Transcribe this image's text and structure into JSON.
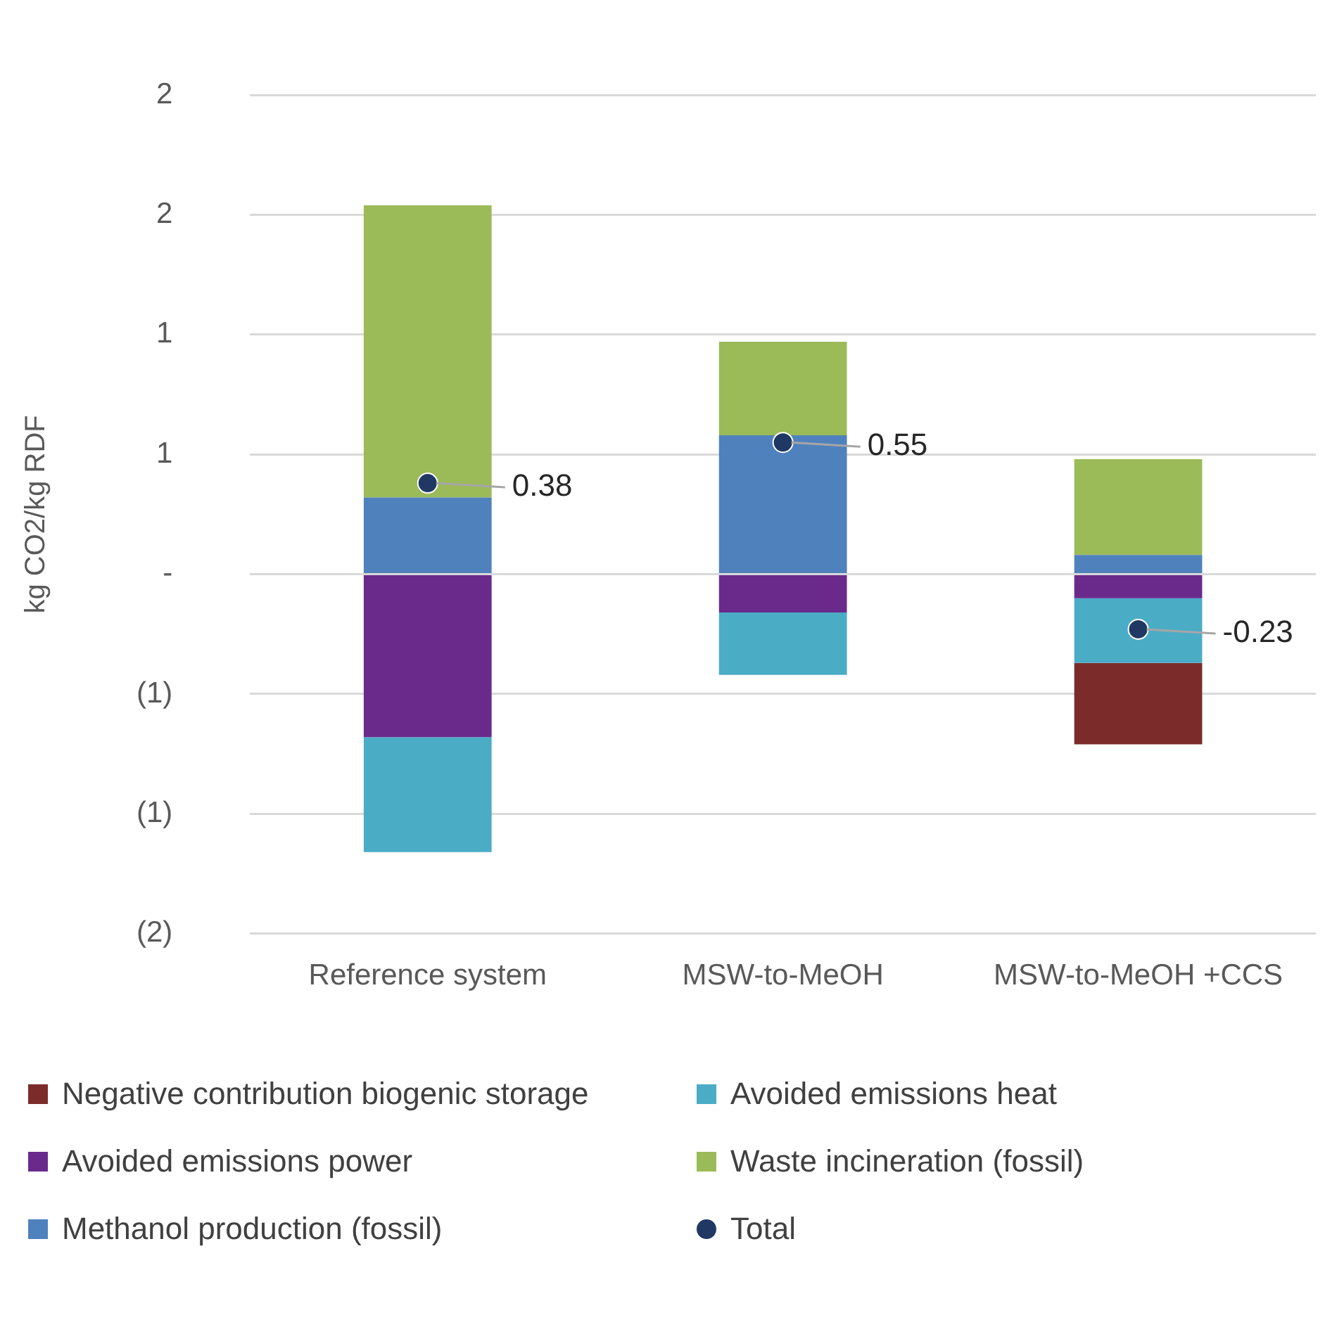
{
  "chart_data": {
    "type": "bar",
    "stacked": true,
    "ylabel": "kg CO2/kg RDF",
    "categories": [
      "Reference system",
      "MSW-to-MeOH",
      "MSW-to-MeOH +CCS"
    ],
    "series": [
      {
        "name": "Methanol production (fossil)",
        "color": "#4f81bd",
        "values": [
          0.32,
          0.58,
          0.08
        ]
      },
      {
        "name": "Waste incineration (fossil)",
        "color": "#9bbb59",
        "values": [
          1.22,
          0.39,
          0.4
        ]
      },
      {
        "name": "Avoided emissions power",
        "color": "#6a2a8c",
        "values": [
          -0.68,
          -0.16,
          -0.1
        ]
      },
      {
        "name": "Avoided emissions heat",
        "color": "#4bacc6",
        "values": [
          -0.48,
          -0.26,
          -0.27
        ]
      },
      {
        "name": "Negative contribution biogenic storage",
        "color": "#7b2c2a",
        "values": [
          0,
          0,
          -0.34
        ]
      },
      {
        "name": "Total",
        "type": "scatter",
        "color": "#1f3864",
        "x": [
          "Reference system",
          "MSW-to-MeOH",
          "MSW-to-MeOH +CCS"
        ],
        "values": [
          0.38,
          0.55,
          -0.23
        ],
        "value_labels": [
          "0.38",
          "0.55",
          "-0.23"
        ]
      }
    ],
    "ylim": [
      -1.5,
      2
    ],
    "yticks": [
      {
        "value": -1.5,
        "label": "(2)"
      },
      {
        "value": -1,
        "label": "(1)"
      },
      {
        "value": -0.5,
        "label": "(1)"
      },
      {
        "value": 0,
        "label": "-"
      },
      {
        "value": 0.5,
        "label": "1"
      },
      {
        "value": 1,
        "label": "1"
      },
      {
        "value": 1.5,
        "label": "2"
      },
      {
        "value": 2,
        "label": "2"
      }
    ],
    "grid": "y",
    "legend": "bottom",
    "marker": "circle"
  }
}
